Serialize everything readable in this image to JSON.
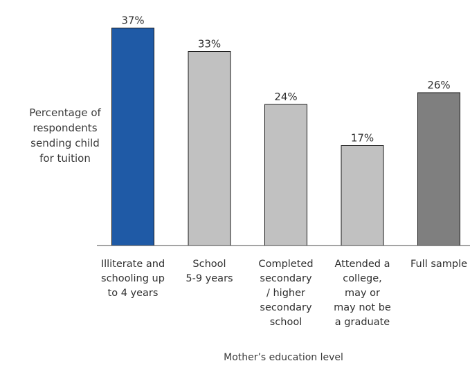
{
  "chart_data": {
    "type": "bar",
    "title": "",
    "ylabel_lines": [
      "Percentage of",
      "respondents",
      "sending child",
      "for tuition"
    ],
    "xlabel": "Mother’s education level",
    "categories": [
      [
        "Illiterate and",
        "schooling up",
        "to 4 years"
      ],
      [
        "School",
        "5-9 years"
      ],
      [
        "Completed",
        "secondary",
        "/ higher",
        "secondary",
        "school"
      ],
      [
        "Attended a",
        "college,",
        "may or",
        "may not be",
        "a graduate"
      ],
      [
        "Full sample"
      ]
    ],
    "values": [
      37,
      33,
      24,
      17,
      26
    ],
    "value_labels": [
      "37%",
      "33%",
      "24%",
      "17%",
      "26%"
    ],
    "bar_colors": [
      "#1f5aa6",
      "#c1c1c1",
      "#c1c1c1",
      "#c1c1c1",
      "#7f7f7f"
    ],
    "ylim": [
      0,
      40
    ],
    "grid": false,
    "legend": "none"
  }
}
